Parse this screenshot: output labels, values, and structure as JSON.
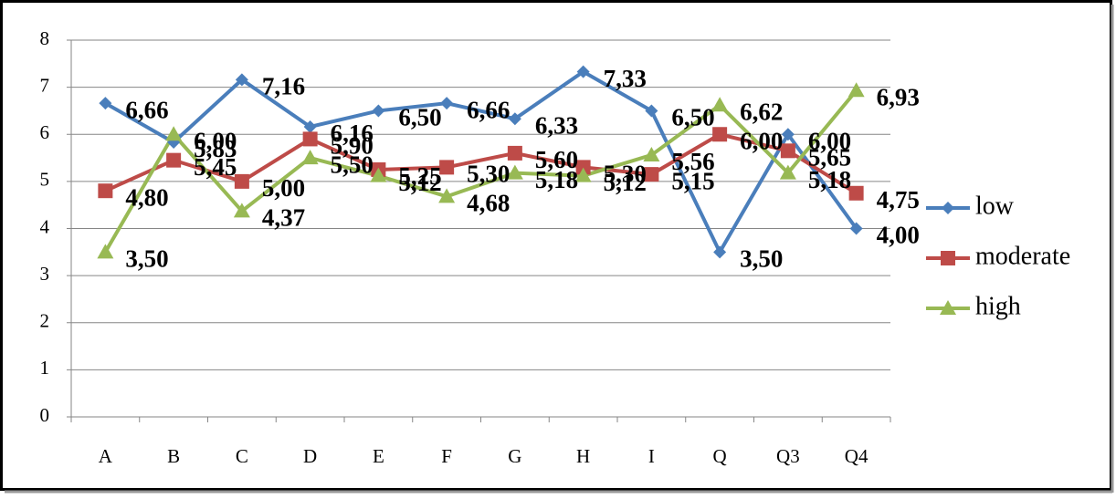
{
  "chart_data": {
    "type": "line",
    "categories": [
      "A",
      "B",
      "C",
      "D",
      "E",
      "F",
      "G",
      "H",
      "I",
      "Q",
      "Q3",
      "Q4"
    ],
    "series": [
      {
        "name": "low",
        "color": "#4a7ebb",
        "marker": "diamond",
        "values": [
          6.66,
          5.83,
          7.16,
          6.16,
          6.5,
          6.66,
          6.33,
          7.33,
          6.5,
          3.5,
          6.0,
          4.0
        ],
        "value_labels": [
          "6,66",
          "5,83",
          "7,16",
          "6,16",
          "6,50",
          "6,66",
          "6,33",
          "7,33",
          "6,50",
          "3,50",
          "6,00",
          "4,00"
        ]
      },
      {
        "name": "moderate",
        "color": "#be4b48",
        "marker": "square",
        "values": [
          4.8,
          5.45,
          5.0,
          5.9,
          5.25,
          5.3,
          5.6,
          5.3,
          5.15,
          6.0,
          5.65,
          4.75
        ],
        "value_labels": [
          "4,80",
          "5,45",
          "5,00",
          "5,90",
          "5,25",
          "5,30",
          "5,60",
          "5,30",
          "5,15",
          "6,00",
          "5,65",
          "4,75"
        ]
      },
      {
        "name": "high",
        "color": "#98b954",
        "marker": "triangle",
        "values": [
          3.5,
          6.0,
          4.37,
          5.5,
          5.12,
          4.68,
          5.18,
          5.12,
          5.56,
          6.62,
          5.18,
          6.93
        ],
        "value_labels": [
          "3,50",
          "6,00",
          "4,37",
          "5,50",
          "5,12",
          "4,68",
          "5,18",
          "5,12",
          "5,56",
          "6,62",
          "5,18",
          "6,93"
        ]
      }
    ],
    "ylim": [
      0,
      8
    ],
    "yticks": [
      0,
      1,
      2,
      3,
      4,
      5,
      6,
      7,
      8
    ],
    "grid": true,
    "legend": "right"
  }
}
